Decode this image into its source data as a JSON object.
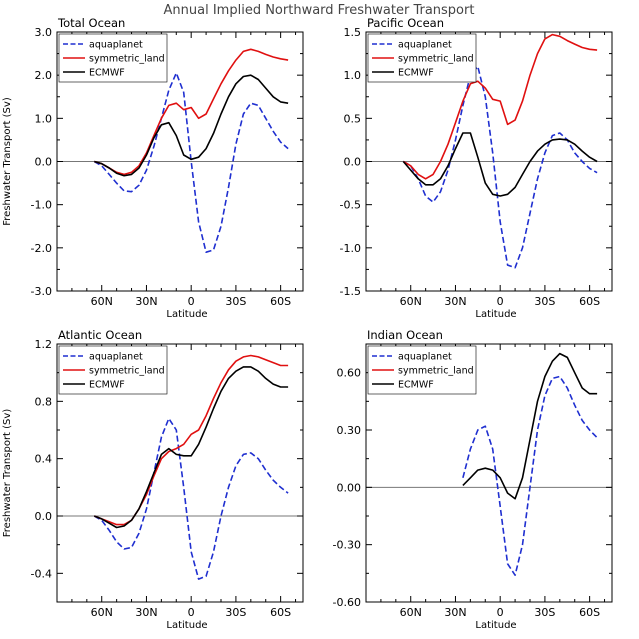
{
  "title": "Annual Implied Northward Freshwater Transport",
  "legend_labels": [
    "aquaplanet",
    "symmetric_land",
    "ECMWF"
  ],
  "colors": {
    "aquaplanet": "#1f2fd0",
    "symmetric_land": "#e01010",
    "ECMWF": "#000000",
    "zero_line": "#777777"
  },
  "chart_data": [
    {
      "type": "line",
      "title": "Total Ocean",
      "xlabel": "Latitude",
      "ylabel": "Freshwater Transport (Sv)",
      "xlim": [
        90,
        -75
      ],
      "ylim": [
        -3.0,
        3.0
      ],
      "x_ticks": [
        60,
        30,
        0,
        -30,
        -60
      ],
      "x_tick_labels": [
        "60N",
        "30N",
        "0",
        "30S",
        "60S"
      ],
      "y_ticks": [
        -3.0,
        -2.0,
        -1.0,
        0.0,
        1.0,
        2.0,
        3.0
      ],
      "y_tick_labels": [
        "-3.0",
        "-2.0",
        "-1.0",
        "0.0",
        "1.0",
        "2.0",
        "3.0"
      ],
      "show_xlabel": true,
      "show_ylabel": true,
      "legend": "top-left",
      "series": [
        {
          "name": "aquaplanet",
          "style": "dashed",
          "x": [
            65,
            60,
            55,
            50,
            45,
            40,
            35,
            30,
            25,
            20,
            15,
            10,
            5,
            0,
            -5,
            -10,
            -15,
            -20,
            -25,
            -30,
            -35,
            -40,
            -45,
            -50,
            -55,
            -60,
            -65
          ],
          "y": [
            0.0,
            -0.1,
            -0.3,
            -0.5,
            -0.68,
            -0.7,
            -0.55,
            -0.2,
            0.35,
            1.0,
            1.65,
            2.05,
            1.6,
            0.0,
            -1.4,
            -2.1,
            -2.05,
            -1.5,
            -0.6,
            0.4,
            1.1,
            1.35,
            1.3,
            1.0,
            0.7,
            0.45,
            0.3
          ]
        },
        {
          "name": "symmetric_land",
          "style": "solid",
          "x": [
            65,
            60,
            55,
            50,
            45,
            40,
            35,
            30,
            25,
            20,
            15,
            10,
            5,
            0,
            -5,
            -10,
            -15,
            -20,
            -25,
            -30,
            -35,
            -40,
            -45,
            -50,
            -55,
            -60,
            -65
          ],
          "y": [
            0.0,
            -0.05,
            -0.15,
            -0.25,
            -0.3,
            -0.25,
            -0.1,
            0.2,
            0.6,
            1.0,
            1.3,
            1.35,
            1.2,
            1.25,
            1.0,
            1.1,
            1.45,
            1.8,
            2.1,
            2.35,
            2.55,
            2.6,
            2.55,
            2.48,
            2.42,
            2.38,
            2.35
          ]
        },
        {
          "name": "ECMWF",
          "style": "solid",
          "x": [
            65,
            60,
            55,
            50,
            45,
            40,
            35,
            30,
            25,
            20,
            15,
            10,
            5,
            0,
            -5,
            -10,
            -15,
            -20,
            -25,
            -30,
            -35,
            -40,
            -45,
            -50,
            -55,
            -60,
            -65
          ],
          "y": [
            0.0,
            -0.05,
            -0.15,
            -0.27,
            -0.33,
            -0.3,
            -0.15,
            0.15,
            0.55,
            0.85,
            0.9,
            0.6,
            0.15,
            0.05,
            0.1,
            0.3,
            0.65,
            1.1,
            1.5,
            1.8,
            1.97,
            2.0,
            1.9,
            1.7,
            1.5,
            1.38,
            1.35
          ]
        }
      ]
    },
    {
      "type": "line",
      "title": "Pacific Ocean",
      "xlabel": "Latitude",
      "ylabel": "",
      "xlim": [
        90,
        -75
      ],
      "ylim": [
        -1.5,
        1.5
      ],
      "x_ticks": [
        60,
        30,
        0,
        -30,
        -60
      ],
      "x_tick_labels": [
        "60N",
        "30N",
        "0",
        "30S",
        "60S"
      ],
      "y_ticks": [
        -1.5,
        -1.0,
        -0.5,
        0.0,
        0.5,
        1.0,
        1.5
      ],
      "y_tick_labels": [
        "-1.5",
        "-1.0",
        "-0.5",
        "0.0",
        "0.5",
        "1.0",
        "1.5"
      ],
      "show_xlabel": true,
      "show_ylabel": false,
      "legend": "top-left",
      "series": [
        {
          "name": "aquaplanet",
          "style": "dashed",
          "x": [
            65,
            60,
            55,
            50,
            45,
            40,
            35,
            30,
            25,
            20,
            15,
            10,
            5,
            0,
            -5,
            -10,
            -15,
            -20,
            -25,
            -30,
            -35,
            -40,
            -45,
            -50,
            -55,
            -60,
            -65
          ],
          "y": [
            0.0,
            -0.05,
            -0.2,
            -0.4,
            -0.47,
            -0.35,
            -0.1,
            0.25,
            0.65,
            1.0,
            1.1,
            0.75,
            0.1,
            -0.7,
            -1.2,
            -1.23,
            -1.0,
            -0.6,
            -0.2,
            0.1,
            0.3,
            0.33,
            0.25,
            0.1,
            0.0,
            -0.08,
            -0.13
          ]
        },
        {
          "name": "symmetric_land",
          "style": "solid",
          "x": [
            65,
            60,
            55,
            50,
            45,
            40,
            35,
            30,
            25,
            20,
            15,
            10,
            5,
            0,
            -5,
            -10,
            -15,
            -20,
            -25,
            -30,
            -35,
            -40,
            -45,
            -50,
            -55,
            -60,
            -65
          ],
          "y": [
            0.0,
            -0.05,
            -0.15,
            -0.2,
            -0.15,
            0.0,
            0.2,
            0.45,
            0.7,
            0.9,
            0.93,
            0.85,
            0.72,
            0.7,
            0.43,
            0.48,
            0.7,
            1.0,
            1.25,
            1.42,
            1.47,
            1.45,
            1.4,
            1.36,
            1.32,
            1.3,
            1.29
          ]
        },
        {
          "name": "ECMWF",
          "style": "solid",
          "x": [
            65,
            60,
            55,
            50,
            45,
            40,
            35,
            30,
            25,
            20,
            15,
            10,
            5,
            0,
            -5,
            -10,
            -15,
            -20,
            -25,
            -30,
            -35,
            -40,
            -45,
            -50,
            -55,
            -60,
            -65
          ],
          "y": [
            0.0,
            -0.1,
            -0.2,
            -0.27,
            -0.27,
            -0.2,
            -0.05,
            0.15,
            0.33,
            0.33,
            0.05,
            -0.25,
            -0.38,
            -0.4,
            -0.38,
            -0.3,
            -0.15,
            0.0,
            0.12,
            0.2,
            0.25,
            0.26,
            0.25,
            0.2,
            0.12,
            0.05,
            0.0
          ]
        }
      ]
    },
    {
      "type": "line",
      "title": "Atlantic Ocean",
      "xlabel": "Latitude",
      "ylabel": "Freshwater Transport (Sv)",
      "xlim": [
        90,
        -75
      ],
      "ylim": [
        -0.6,
        1.2
      ],
      "x_ticks": [
        60,
        30,
        0,
        -30,
        -60
      ],
      "x_tick_labels": [
        "60N",
        "30N",
        "0",
        "30S",
        "60S"
      ],
      "y_ticks": [
        -0.4,
        0.0,
        0.4,
        0.8,
        1.2
      ],
      "y_tick_labels": [
        "-0.4",
        "0.0",
        "0.4",
        "0.8",
        "1.2"
      ],
      "show_xlabel": true,
      "show_ylabel": true,
      "legend": "top-left",
      "series": [
        {
          "name": "aquaplanet",
          "style": "dashed",
          "x": [
            65,
            60,
            55,
            50,
            45,
            40,
            35,
            30,
            25,
            20,
            15,
            10,
            5,
            0,
            -5,
            -10,
            -15,
            -20,
            -25,
            -30,
            -35,
            -40,
            -45,
            -50,
            -55,
            -60,
            -65
          ],
          "y": [
            0.0,
            -0.03,
            -0.1,
            -0.18,
            -0.23,
            -0.22,
            -0.12,
            0.05,
            0.3,
            0.55,
            0.68,
            0.6,
            0.2,
            -0.25,
            -0.44,
            -0.42,
            -0.25,
            0.0,
            0.2,
            0.35,
            0.43,
            0.44,
            0.4,
            0.32,
            0.25,
            0.2,
            0.16
          ]
        },
        {
          "name": "symmetric_land",
          "style": "solid",
          "x": [
            65,
            60,
            55,
            50,
            45,
            40,
            35,
            30,
            25,
            20,
            15,
            10,
            5,
            0,
            -5,
            -10,
            -15,
            -20,
            -25,
            -30,
            -35,
            -40,
            -45,
            -50,
            -55,
            -60,
            -65
          ],
          "y": [
            0.0,
            -0.02,
            -0.04,
            -0.06,
            -0.06,
            -0.03,
            0.05,
            0.15,
            0.28,
            0.4,
            0.45,
            0.47,
            0.5,
            0.57,
            0.6,
            0.7,
            0.82,
            0.93,
            1.02,
            1.08,
            1.11,
            1.12,
            1.11,
            1.09,
            1.07,
            1.05,
            1.05
          ]
        },
        {
          "name": "ECMWF",
          "style": "solid",
          "x": [
            65,
            60,
            55,
            50,
            45,
            40,
            35,
            30,
            25,
            20,
            15,
            10,
            5,
            0,
            -5,
            -10,
            -15,
            -20,
            -25,
            -30,
            -35,
            -40,
            -45,
            -50,
            -55,
            -60,
            -65
          ],
          "y": [
            0.0,
            -0.02,
            -0.05,
            -0.08,
            -0.07,
            -0.03,
            0.05,
            0.17,
            0.3,
            0.43,
            0.47,
            0.43,
            0.42,
            0.42,
            0.5,
            0.62,
            0.75,
            0.87,
            0.96,
            1.01,
            1.04,
            1.04,
            1.01,
            0.96,
            0.92,
            0.9,
            0.9
          ]
        }
      ]
    },
    {
      "type": "line",
      "title": "Indian Ocean",
      "xlabel": "Latitude",
      "ylabel": "",
      "xlim": [
        90,
        -75
      ],
      "ylim": [
        -0.6,
        0.75
      ],
      "x_ticks": [
        60,
        30,
        0,
        -30,
        -60
      ],
      "x_tick_labels": [
        "60N",
        "30N",
        "0",
        "30S",
        "60S"
      ],
      "y_ticks": [
        -0.6,
        -0.3,
        0.0,
        0.3,
        0.6
      ],
      "y_tick_labels": [
        "-0.60",
        "-0.30",
        "0.00",
        "0.30",
        "0.60"
      ],
      "show_xlabel": true,
      "show_ylabel": false,
      "legend": "top-left",
      "series": [
        {
          "name": "aquaplanet",
          "style": "dashed",
          "x": [
            25,
            20,
            15,
            10,
            5,
            0,
            -5,
            -10,
            -15,
            -20,
            -25,
            -30,
            -35,
            -40,
            -45,
            -50,
            -55,
            -60,
            -65
          ],
          "y": [
            0.05,
            0.2,
            0.3,
            0.32,
            0.2,
            -0.1,
            -0.4,
            -0.46,
            -0.3,
            0.0,
            0.3,
            0.48,
            0.57,
            0.58,
            0.52,
            0.43,
            0.35,
            0.3,
            0.26
          ]
        },
        {
          "name": "ECMWF",
          "style": "solid",
          "x": [
            25,
            20,
            15,
            10,
            5,
            0,
            -5,
            -10,
            -15,
            -20,
            -25,
            -30,
            -35,
            -40,
            -45,
            -50,
            -55,
            -60,
            -65
          ],
          "y": [
            0.01,
            0.05,
            0.09,
            0.1,
            0.09,
            0.05,
            -0.03,
            -0.06,
            0.05,
            0.25,
            0.45,
            0.58,
            0.66,
            0.7,
            0.68,
            0.6,
            0.52,
            0.49,
            0.49
          ]
        }
      ]
    }
  ]
}
